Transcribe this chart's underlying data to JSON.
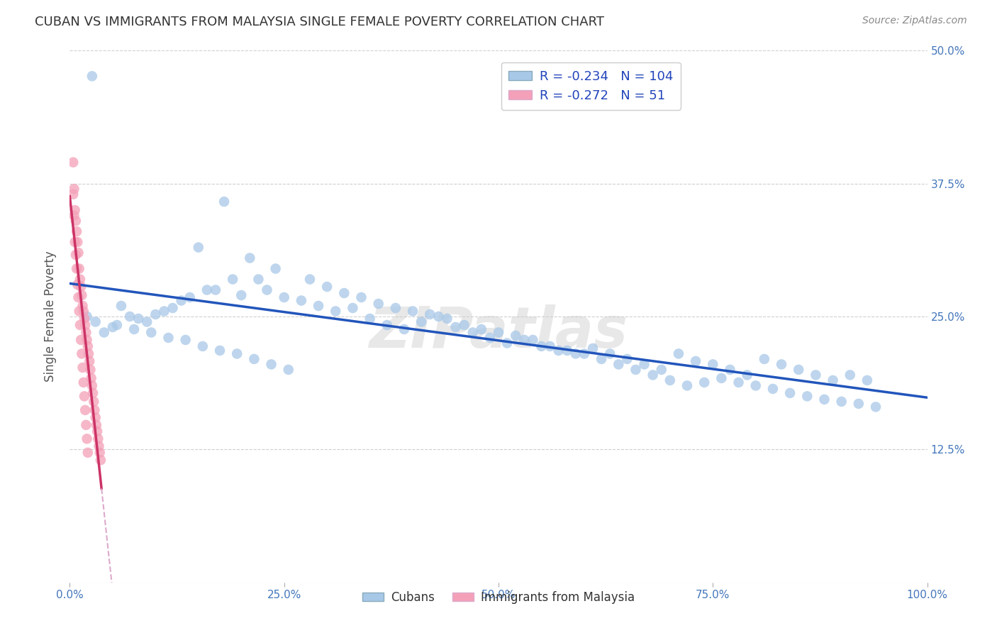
{
  "title": "CUBAN VS IMMIGRANTS FROM MALAYSIA SINGLE FEMALE POVERTY CORRELATION CHART",
  "source": "Source: ZipAtlas.com",
  "ylabel": "Single Female Poverty",
  "watermark": "ZIPatlas",
  "legend_label1": "Cubans",
  "legend_label2": "Immigrants from Malaysia",
  "r1": -0.234,
  "n1": 104,
  "r2": -0.272,
  "n2": 51,
  "color1": "#A8C8E8",
  "color2": "#F4A0B8",
  "trendline1_color": "#2255BB",
  "trendline2_color": "#CC3366",
  "trendline2_dash_color": "#DDAACC",
  "xlim": [
    0,
    1
  ],
  "ylim": [
    0,
    0.5
  ],
  "yticks": [
    0,
    0.125,
    0.25,
    0.375,
    0.5
  ],
  "ytick_labels": [
    "",
    "12.5%",
    "25.0%",
    "37.5%",
    "50.0%"
  ],
  "xticks": [
    0,
    0.25,
    0.5,
    0.75,
    1.0
  ],
  "xtick_labels": [
    "0.0%",
    "25.0%",
    "50.0%",
    "75.0%",
    "100.0%"
  ],
  "cubans_x": [
    0.026,
    0.18,
    0.21,
    0.24,
    0.22,
    0.15,
    0.19,
    0.17,
    0.13,
    0.11,
    0.09,
    0.07,
    0.06,
    0.05,
    0.04,
    0.08,
    0.1,
    0.12,
    0.14,
    0.16,
    0.2,
    0.23,
    0.25,
    0.27,
    0.29,
    0.31,
    0.33,
    0.35,
    0.37,
    0.39,
    0.41,
    0.43,
    0.45,
    0.47,
    0.49,
    0.51,
    0.53,
    0.55,
    0.57,
    0.59,
    0.61,
    0.63,
    0.65,
    0.67,
    0.69,
    0.71,
    0.73,
    0.75,
    0.77,
    0.79,
    0.81,
    0.83,
    0.85,
    0.87,
    0.89,
    0.91,
    0.93,
    0.28,
    0.3,
    0.32,
    0.34,
    0.36,
    0.38,
    0.4,
    0.42,
    0.44,
    0.46,
    0.48,
    0.5,
    0.52,
    0.54,
    0.56,
    0.58,
    0.6,
    0.62,
    0.64,
    0.66,
    0.68,
    0.7,
    0.72,
    0.74,
    0.76,
    0.78,
    0.8,
    0.82,
    0.84,
    0.86,
    0.88,
    0.9,
    0.92,
    0.94,
    0.03,
    0.02,
    0.055,
    0.075,
    0.095,
    0.115,
    0.135,
    0.155,
    0.175,
    0.195,
    0.215,
    0.235,
    0.255
  ],
  "cubans_y": [
    0.476,
    0.358,
    0.305,
    0.295,
    0.285,
    0.315,
    0.285,
    0.275,
    0.265,
    0.255,
    0.245,
    0.25,
    0.26,
    0.24,
    0.235,
    0.248,
    0.252,
    0.258,
    0.268,
    0.275,
    0.27,
    0.275,
    0.268,
    0.265,
    0.26,
    0.255,
    0.258,
    0.248,
    0.242,
    0.238,
    0.245,
    0.25,
    0.24,
    0.235,
    0.23,
    0.225,
    0.228,
    0.222,
    0.218,
    0.215,
    0.22,
    0.215,
    0.21,
    0.205,
    0.2,
    0.215,
    0.208,
    0.205,
    0.2,
    0.195,
    0.21,
    0.205,
    0.2,
    0.195,
    0.19,
    0.195,
    0.19,
    0.285,
    0.278,
    0.272,
    0.268,
    0.262,
    0.258,
    0.255,
    0.252,
    0.248,
    0.242,
    0.238,
    0.235,
    0.232,
    0.228,
    0.222,
    0.218,
    0.215,
    0.21,
    0.205,
    0.2,
    0.195,
    0.19,
    0.185,
    0.188,
    0.192,
    0.188,
    0.185,
    0.182,
    0.178,
    0.175,
    0.172,
    0.17,
    0.168,
    0.165,
    0.245,
    0.25,
    0.242,
    0.238,
    0.235,
    0.23,
    0.228,
    0.222,
    0.218,
    0.215,
    0.21,
    0.205,
    0.2
  ],
  "malaysia_x": [
    0.004,
    0.005,
    0.006,
    0.007,
    0.008,
    0.009,
    0.01,
    0.011,
    0.012,
    0.013,
    0.014,
    0.015,
    0.016,
    0.017,
    0.018,
    0.019,
    0.02,
    0.021,
    0.022,
    0.023,
    0.024,
    0.025,
    0.026,
    0.027,
    0.028,
    0.029,
    0.03,
    0.031,
    0.032,
    0.033,
    0.034,
    0.035,
    0.036,
    0.004,
    0.005,
    0.006,
    0.007,
    0.008,
    0.009,
    0.01,
    0.011,
    0.012,
    0.013,
    0.014,
    0.015,
    0.016,
    0.017,
    0.018,
    0.019,
    0.02,
    0.021
  ],
  "malaysia_y": [
    0.395,
    0.37,
    0.35,
    0.34,
    0.33,
    0.32,
    0.31,
    0.295,
    0.285,
    0.278,
    0.27,
    0.26,
    0.255,
    0.248,
    0.242,
    0.235,
    0.228,
    0.222,
    0.215,
    0.208,
    0.2,
    0.192,
    0.185,
    0.178,
    0.17,
    0.162,
    0.155,
    0.148,
    0.142,
    0.135,
    0.128,
    0.122,
    0.115,
    0.365,
    0.345,
    0.32,
    0.308,
    0.295,
    0.28,
    0.268,
    0.255,
    0.242,
    0.228,
    0.215,
    0.202,
    0.188,
    0.175,
    0.162,
    0.148,
    0.135,
    0.122
  ]
}
